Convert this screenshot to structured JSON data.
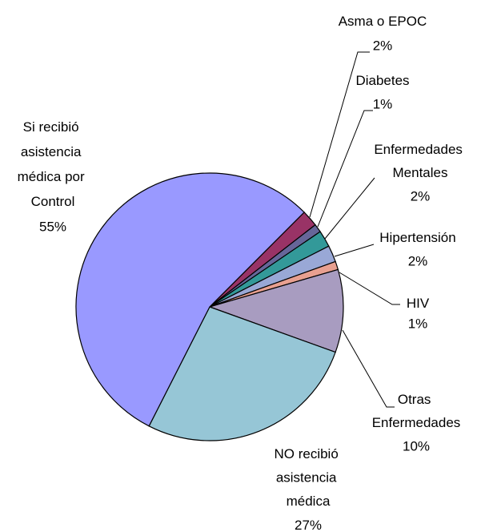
{
  "chart_data": {
    "type": "pie",
    "categories": [
      "Asma o EPOC",
      "Diabetes",
      "Enfermedades Mentales",
      "Hipertensión",
      "HIV",
      "Otras Enfermedades",
      "NO recibió asistencia médica",
      "Si recibió asistencia médica por Control"
    ],
    "values": [
      2,
      1,
      2,
      2,
      1,
      10,
      27,
      55
    ],
    "value_labels": [
      "2%",
      "1%",
      "2%",
      "2%",
      "1%",
      "10%",
      "27%",
      "55%"
    ],
    "colors": [
      "#993366",
      "#666699",
      "#339999",
      "#99a8d6",
      "#e8a090",
      "#a89cc0",
      "#96c6d6",
      "#9999ff"
    ]
  }
}
